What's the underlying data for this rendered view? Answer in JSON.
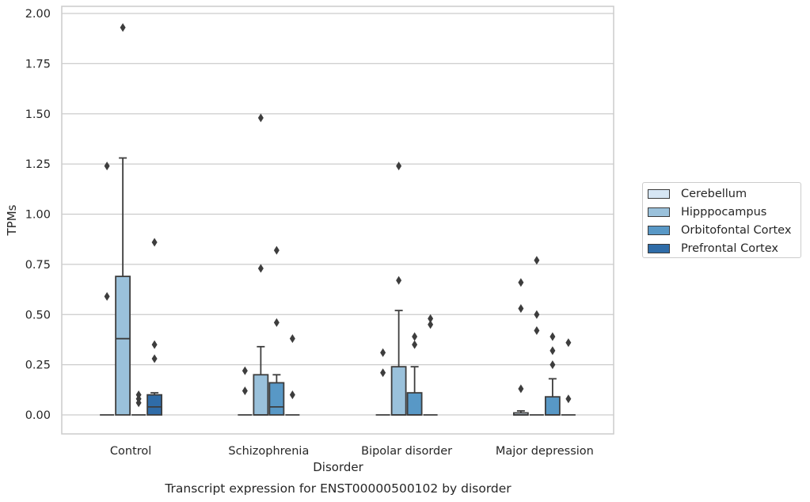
{
  "chart_data": {
    "type": "box",
    "title": "Transcript expression for ENST00000500102 by disorder",
    "xlabel": "Disorder",
    "ylabel": "TPMs",
    "ylim": [
      -0.095,
      2.03
    ],
    "yticks": [
      "0.00",
      "0.25",
      "0.50",
      "0.75",
      "1.00",
      "1.25",
      "1.50",
      "1.75",
      "2.00"
    ],
    "ytick_values": [
      0,
      0.25,
      0.5,
      0.75,
      1.0,
      1.25,
      1.5,
      1.75,
      2.0
    ],
    "grid": true,
    "legend_position": "right",
    "categories": [
      "Control",
      "Schizophrenia",
      "Bipolar disorder",
      "Major depression"
    ],
    "series": [
      {
        "name": "Cerebellum",
        "color": "#d6e6f4",
        "boxes": [
          {
            "q1": 0,
            "median": 0,
            "q3": 0,
            "whisker_low": 0,
            "whisker_high": 0,
            "outliers": [
              0.59,
              1.24
            ]
          },
          {
            "q1": 0,
            "median": 0,
            "q3": 0,
            "whisker_low": 0,
            "whisker_high": 0,
            "outliers": [
              0.12,
              0.22
            ]
          },
          {
            "q1": 0,
            "median": 0,
            "q3": 0,
            "whisker_low": 0,
            "whisker_high": 0,
            "outliers": [
              0.21,
              0.31
            ]
          },
          {
            "q1": 0,
            "median": 0,
            "q3": 0.01,
            "whisker_low": 0,
            "whisker_high": 0.02,
            "outliers": [
              0.13,
              0.53,
              0.66
            ]
          }
        ]
      },
      {
        "name": "Hipppocampus",
        "color": "#9ac1db",
        "boxes": [
          {
            "q1": 0,
            "median": 0.38,
            "q3": 0.69,
            "whisker_low": 0,
            "whisker_high": 1.28,
            "outliers": [
              1.93
            ]
          },
          {
            "q1": 0,
            "median": 0,
            "q3": 0.2,
            "whisker_low": 0,
            "whisker_high": 0.34,
            "outliers": [
              0.73,
              1.48
            ]
          },
          {
            "q1": 0,
            "median": 0,
            "q3": 0.24,
            "whisker_low": 0,
            "whisker_high": 0.52,
            "outliers": [
              0.67,
              1.24
            ]
          },
          {
            "q1": 0,
            "median": 0,
            "q3": 0,
            "whisker_low": 0,
            "whisker_high": 0,
            "outliers": [
              0.42,
              0.5,
              0.77
            ]
          }
        ]
      },
      {
        "name": "Orbitofontal Cortex",
        "color": "#5898c6",
        "boxes": [
          {
            "q1": 0,
            "median": 0,
            "q3": 0,
            "whisker_low": 0,
            "whisker_high": 0,
            "outliers": [
              0.06,
              0.08,
              0.1
            ]
          },
          {
            "q1": 0,
            "median": 0.04,
            "q3": 0.16,
            "whisker_low": 0,
            "whisker_high": 0.2,
            "outliers": [
              0.46,
              0.82
            ]
          },
          {
            "q1": 0,
            "median": 0,
            "q3": 0.11,
            "whisker_low": 0,
            "whisker_high": 0.24,
            "outliers": [
              0.35,
              0.39
            ]
          },
          {
            "q1": 0,
            "median": 0,
            "q3": 0.09,
            "whisker_low": 0,
            "whisker_high": 0.18,
            "outliers": [
              0.25,
              0.32,
              0.39
            ]
          }
        ]
      },
      {
        "name": "Prefrontal Cortex",
        "color": "#2f6ca8",
        "boxes": [
          {
            "q1": 0,
            "median": 0.04,
            "q3": 0.1,
            "whisker_low": 0,
            "whisker_high": 0.11,
            "outliers": [
              0.28,
              0.35,
              0.86
            ]
          },
          {
            "q1": 0,
            "median": 0,
            "q3": 0,
            "whisker_low": 0,
            "whisker_high": 0,
            "outliers": [
              0.1,
              0.38
            ]
          },
          {
            "q1": 0,
            "median": 0,
            "q3": 0,
            "whisker_low": 0,
            "whisker_high": 0,
            "outliers": [
              0.45,
              0.48
            ]
          },
          {
            "q1": 0,
            "median": 0,
            "q3": 0,
            "whisker_low": 0,
            "whisker_high": 0,
            "outliers": [
              0.08,
              0.36
            ]
          }
        ]
      }
    ]
  },
  "colors": {
    "grid": "#cccccc",
    "frame": "#cccccc",
    "box_edge": "#3d3d3d",
    "outlier": "#3d3d3d"
  }
}
